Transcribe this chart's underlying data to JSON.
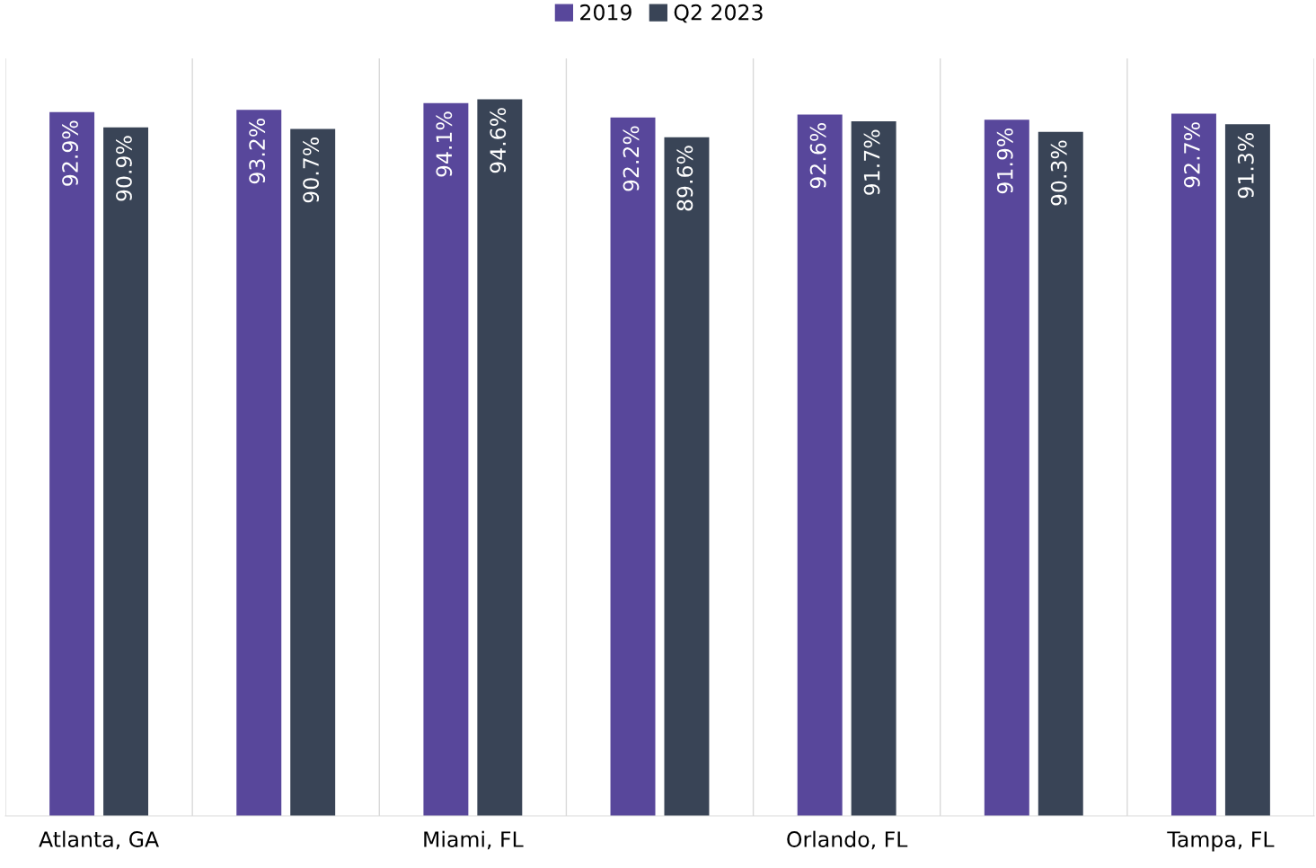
{
  "chart_data": {
    "type": "bar",
    "categories": [
      "Atlanta, GA",
      null,
      "Miami, FL",
      null,
      "Orlando, FL",
      null,
      "Tampa, FL"
    ],
    "series": [
      {
        "name": "2019",
        "color": "#58479b",
        "values": [
          92.9,
          93.2,
          94.1,
          92.2,
          92.6,
          91.9,
          92.7
        ],
        "value_labels": [
          "92.9%",
          "93.2%",
          "94.1%",
          "92.2%",
          "92.6%",
          "91.9%",
          "92.7%"
        ]
      },
      {
        "name": "Q2 2023",
        "color": "#394456",
        "values": [
          90.9,
          90.7,
          94.6,
          89.6,
          91.7,
          90.3,
          91.3
        ],
        "value_labels": [
          "90.9%",
          "90.7%",
          "94.6%",
          "89.6%",
          "91.7%",
          "90.3%",
          "91.3%"
        ]
      }
    ],
    "ylim": [
      0,
      100
    ],
    "tick_labels": "x",
    "grid": "x",
    "legend": "top"
  }
}
